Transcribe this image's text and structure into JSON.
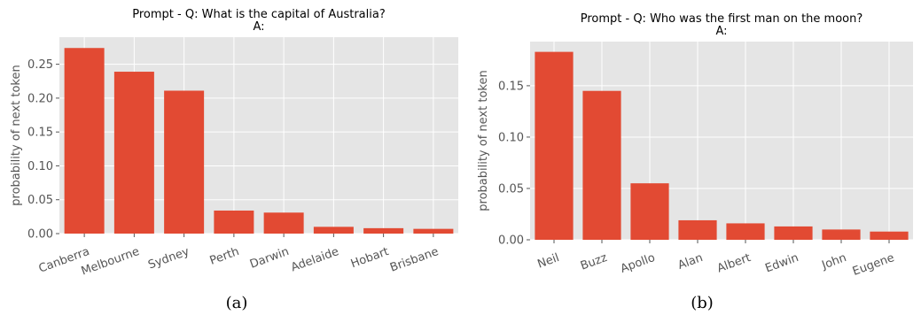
{
  "chart_data": [
    {
      "type": "bar",
      "title_line1": "Prompt - Q: What is the capital of Australia?",
      "title_line2": "A:",
      "ylabel": "probability of next token",
      "categories": [
        "Canberra",
        "Melbourne",
        "Sydney",
        "Perth",
        "Darwin",
        "Adelaide",
        "Hobart",
        "Brisbane"
      ],
      "values": [
        0.274,
        0.239,
        0.211,
        0.034,
        0.031,
        0.01,
        0.008,
        0.007
      ],
      "ylim": [
        0,
        0.29
      ],
      "yticks": [
        0,
        0.05,
        0.1,
        0.15,
        0.2,
        0.25
      ],
      "ytick_labels": [
        "0.00",
        "0.05",
        "0.10",
        "0.15",
        "0.20",
        "0.25"
      ],
      "grid": true,
      "bar_color": "#E24A33",
      "caption": "(a)"
    },
    {
      "type": "bar",
      "title_line1": "Prompt - Q: Who was the first man on the moon?",
      "title_line2": "A:",
      "ylabel": "probability of next token",
      "categories": [
        "Neil",
        "Buzz",
        "Apollo",
        "Alan",
        "Albert",
        "Edwin",
        "John",
        "Eugene"
      ],
      "values": [
        0.183,
        0.145,
        0.055,
        0.019,
        0.016,
        0.013,
        0.01,
        0.008
      ],
      "ylim": [
        0,
        0.193
      ],
      "yticks": [
        0,
        0.05,
        0.1,
        0.15
      ],
      "ytick_labels": [
        "0.00",
        "0.05",
        "0.10",
        "0.15"
      ],
      "grid": true,
      "bar_color": "#E24A33",
      "caption": "(b)"
    }
  ],
  "style": {
    "plot_bg": "#E5E5E5",
    "grid_color": "#FFFFFF"
  }
}
